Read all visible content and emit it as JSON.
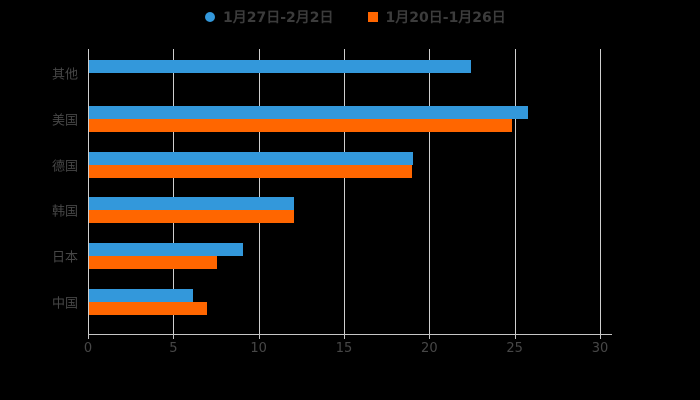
{
  "canvas": {
    "background": "#000000"
  },
  "legend": {
    "position": "top",
    "items": [
      {
        "label": "1月27日-2月2日",
        "color": "#3398db",
        "marker": "circle"
      },
      {
        "label": "1月20日-1月26日",
        "color": "#ff6600",
        "marker": "square"
      }
    ]
  },
  "chart_data": {
    "type": "bar",
    "orientation": "horizontal",
    "title": "",
    "xlabel": "",
    "ylabel": "",
    "categories": [
      "其他",
      "美国",
      "德国",
      "韩国",
      "日本",
      "中国"
    ],
    "series": [
      {
        "name": "1月27日-2月2日",
        "color": "#3398db",
        "values": [
          22.4,
          25.7,
          19.0,
          12.0,
          9.0,
          6.1
        ]
      },
      {
        "name": "1月20日-1月26日",
        "color": "#ff6600",
        "values": [
          null,
          24.8,
          18.9,
          12.0,
          7.5,
          6.9
        ]
      }
    ],
    "xlim": [
      0,
      30
    ],
    "x_ticks": [
      0,
      5,
      10,
      15,
      20,
      25,
      30
    ],
    "grid": true,
    "gridline_color": "#cfcfcf",
    "axis_color": "#c6c6c6",
    "text_color": "#474747",
    "legend_position": "top"
  }
}
